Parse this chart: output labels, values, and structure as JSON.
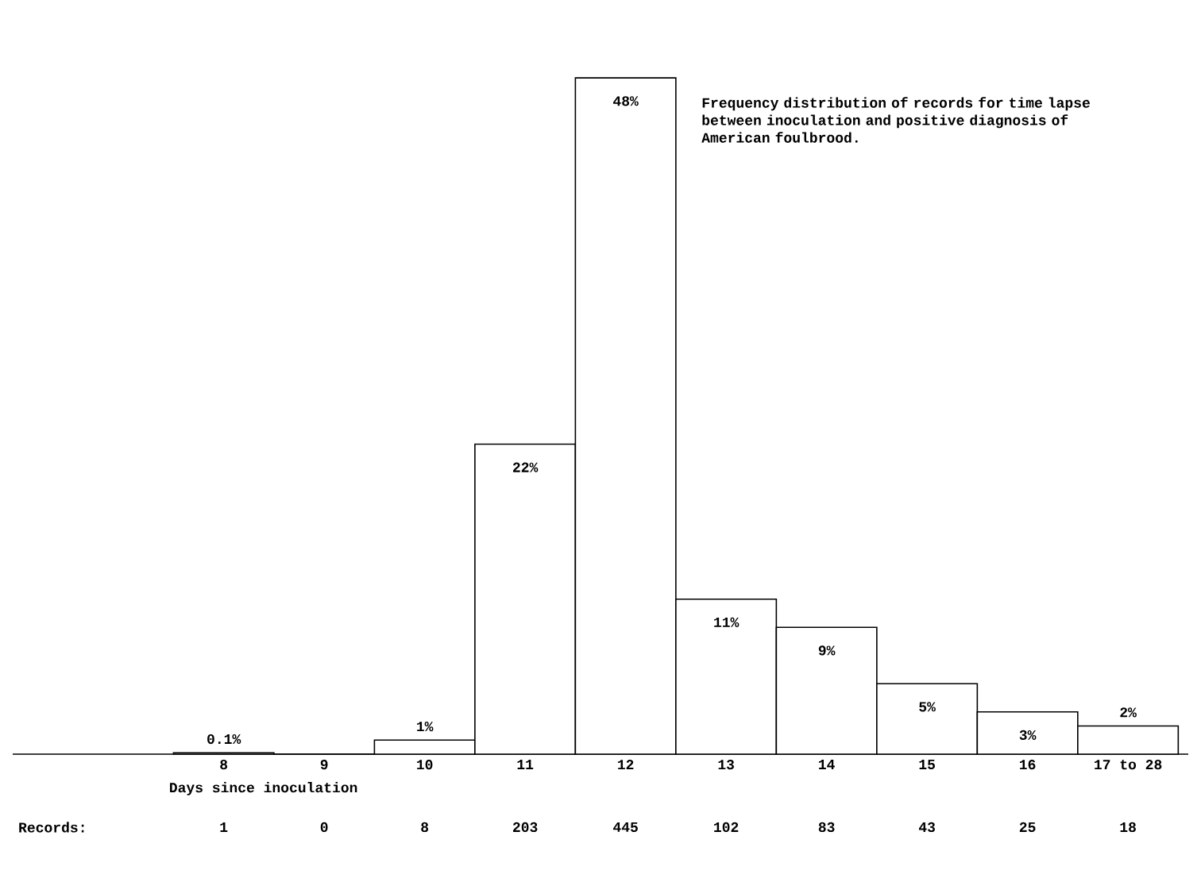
{
  "chart_data": {
    "type": "bar",
    "categories": [
      "8",
      "9",
      "10",
      "11",
      "12",
      "13",
      "14",
      "15",
      "16",
      "17 to 28"
    ],
    "values": [
      0.1,
      0,
      1,
      22,
      48,
      11,
      9,
      5,
      3,
      2
    ],
    "value_labels": [
      "0.1%",
      null,
      "1%",
      "22%",
      "48%",
      "11%",
      "9%",
      "5%",
      "3%",
      "2%"
    ],
    "color": "#ffffff",
    "xlabel": "Days since inoculation",
    "annotations": [
      "Frequency distribution of records for time lapse between inoculation and positive diagnosis of American foulbrood.",
      "Records:",
      "1",
      "0",
      "8",
      "203",
      "445",
      "102",
      "83",
      "43",
      "25",
      "18"
    ]
  }
}
